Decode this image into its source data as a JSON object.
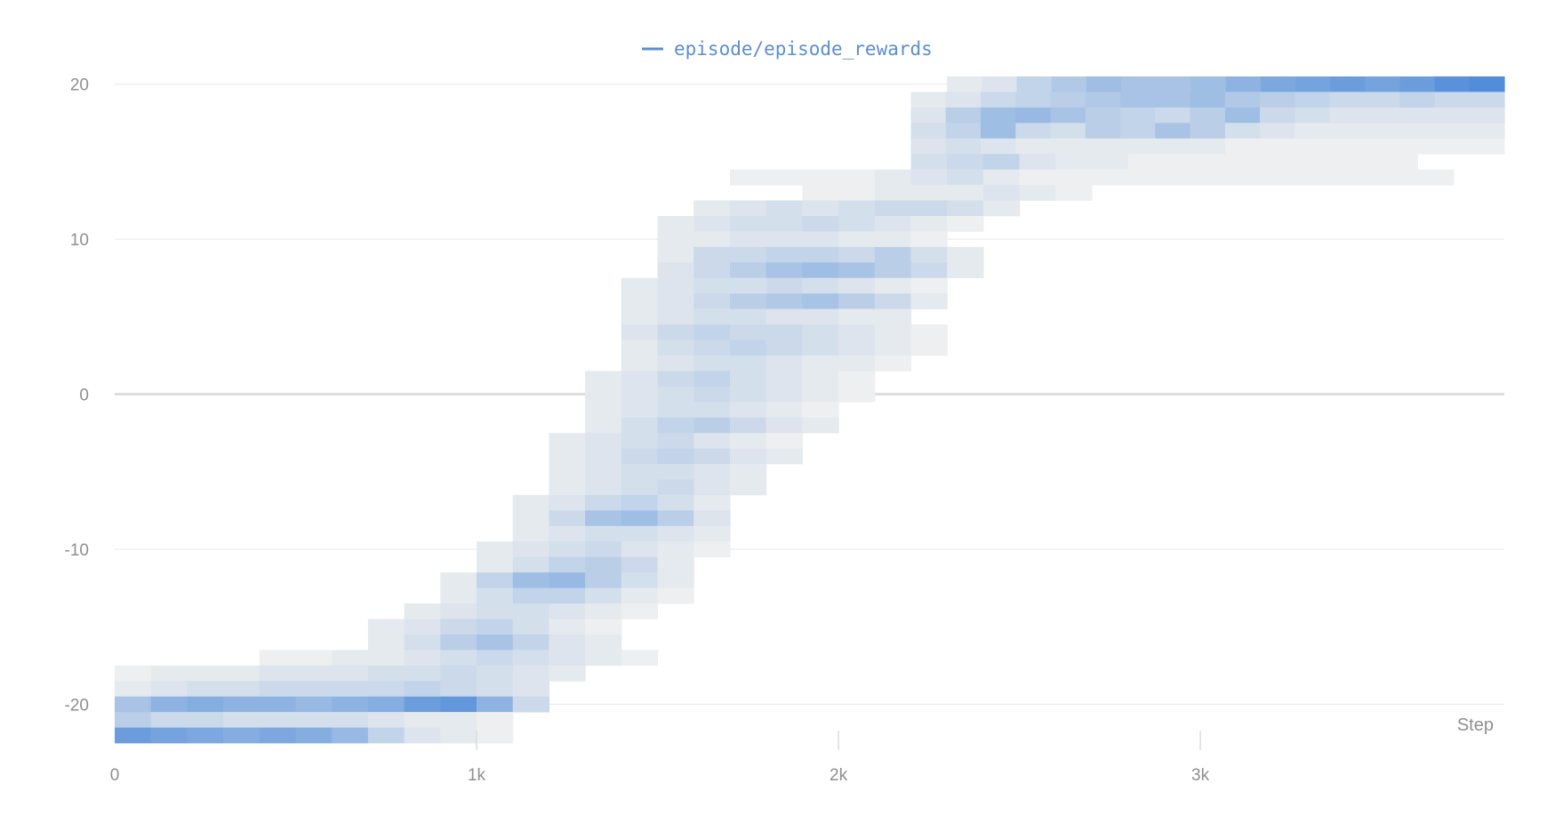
{
  "chart_data": {
    "type": "heatmap",
    "title": "",
    "legend": {
      "label": "episode/episode_rewards",
      "position": "top-center",
      "color": "#4a86d4"
    },
    "xlabel": "Step",
    "ylabel": "",
    "xlim": [
      0,
      3840
    ],
    "ylim": [
      -22.5,
      20.5
    ],
    "x_ticks": [
      {
        "value": 0,
        "label": "0"
      },
      {
        "value": 1000,
        "label": "1k"
      },
      {
        "value": 2000,
        "label": "2k"
      },
      {
        "value": 3000,
        "label": "3k"
      }
    ],
    "y_ticks": [
      {
        "value": 20,
        "label": "20"
      },
      {
        "value": 10,
        "label": "10"
      },
      {
        "value": 0,
        "label": "0"
      },
      {
        "value": -10,
        "label": "-10"
      },
      {
        "value": -20,
        "label": "-20"
      }
    ],
    "grid": true,
    "colors": {
      "low": "#eeeff0",
      "high": "#3f82d6",
      "grid": "#ececec",
      "zero_line": "#dedede"
    },
    "bin_step": 100,
    "rows": [
      {
        "reward": 20,
        "x_start": 2300,
        "x_end": 3840,
        "intensity": [
          0.05,
          0.1,
          0.25,
          0.35,
          0.45,
          0.4,
          0.4,
          0.45,
          0.55,
          0.65,
          0.7,
          0.75,
          0.7,
          0.75,
          0.85,
          0.9
        ]
      },
      {
        "reward": 19,
        "x_start": 2200,
        "x_end": 3840,
        "intensity": [
          0.05,
          0.1,
          0.2,
          0.25,
          0.3,
          0.35,
          0.4,
          0.4,
          0.45,
          0.35,
          0.3,
          0.25,
          0.2,
          0.2,
          0.25,
          0.2,
          0.2
        ]
      },
      {
        "reward": 18,
        "x_start": 2200,
        "x_end": 3840,
        "intensity": [
          0.1,
          0.3,
          0.45,
          0.5,
          0.4,
          0.3,
          0.25,
          0.2,
          0.3,
          0.45,
          0.2,
          0.15,
          0.1,
          0.1,
          0.1,
          0.1,
          0.1
        ]
      },
      {
        "reward": 17,
        "x_start": 2200,
        "x_end": 3840,
        "intensity": [
          0.15,
          0.25,
          0.45,
          0.2,
          0.15,
          0.3,
          0.25,
          0.4,
          0.3,
          0.15,
          0.1,
          0.05,
          0.05,
          0.05,
          0.05,
          0.05,
          0.05
        ]
      },
      {
        "reward": 16,
        "x_start": 2200,
        "x_end": 3840,
        "intensity": [
          0.1,
          0.15,
          0.1,
          0.05,
          0.05,
          0.05,
          0.05,
          0.05,
          0.05,
          0.0,
          0.0,
          0.0,
          0.0,
          0.0,
          0.0,
          0.0,
          0.0
        ]
      },
      {
        "reward": 15,
        "x_start": 2200,
        "x_end": 3600,
        "intensity": [
          0.15,
          0.2,
          0.25,
          0.1,
          0.05,
          0.05,
          0.0,
          0.0,
          0.0,
          0.0,
          0.0,
          0.0,
          0.0,
          0.0
        ]
      },
      {
        "reward": 14,
        "x_start": 1700,
        "x_end": 3700,
        "intensity": [
          0.0,
          0.0,
          0.0,
          0.0,
          0.05,
          0.1,
          0.15,
          0.05,
          0.0,
          0.0,
          0.0,
          0.0,
          0.0,
          0.0,
          0.0,
          0.0,
          0.0,
          0.0,
          0.0,
          0.0
        ]
      },
      {
        "reward": 13,
        "x_start": 1900,
        "x_end": 2700,
        "intensity": [
          0.0,
          0.0,
          0.05,
          0.05,
          0.05,
          0.1,
          0.05,
          0.0
        ]
      },
      {
        "reward": 12,
        "x_start": 1600,
        "x_end": 2500,
        "intensity": [
          0.05,
          0.1,
          0.15,
          0.1,
          0.15,
          0.2,
          0.2,
          0.15,
          0.05
        ]
      },
      {
        "reward": 11,
        "x_start": 1500,
        "x_end": 2400,
        "intensity": [
          0.05,
          0.1,
          0.15,
          0.15,
          0.2,
          0.15,
          0.1,
          0.05,
          0.0
        ]
      },
      {
        "reward": 10,
        "x_start": 1500,
        "x_end": 2300,
        "intensity": [
          0.05,
          0.05,
          0.1,
          0.1,
          0.1,
          0.05,
          0.05,
          0.0
        ]
      },
      {
        "reward": 9,
        "x_start": 1500,
        "x_end": 2400,
        "intensity": [
          0.05,
          0.2,
          0.2,
          0.25,
          0.25,
          0.2,
          0.3,
          0.15,
          0.05
        ]
      },
      {
        "reward": 8,
        "x_start": 1500,
        "x_end": 2400,
        "intensity": [
          0.1,
          0.2,
          0.3,
          0.4,
          0.45,
          0.4,
          0.3,
          0.2,
          0.05
        ]
      },
      {
        "reward": 7,
        "x_start": 1400,
        "x_end": 2300,
        "intensity": [
          0.05,
          0.1,
          0.15,
          0.15,
          0.2,
          0.15,
          0.1,
          0.05,
          0.0
        ]
      },
      {
        "reward": 6,
        "x_start": 1400,
        "x_end": 2300,
        "intensity": [
          0.05,
          0.1,
          0.2,
          0.3,
          0.35,
          0.4,
          0.3,
          0.2,
          0.05
        ]
      },
      {
        "reward": 5,
        "x_start": 1400,
        "x_end": 2200,
        "intensity": [
          0.05,
          0.1,
          0.15,
          0.15,
          0.1,
          0.1,
          0.05,
          0.05
        ]
      },
      {
        "reward": 4,
        "x_start": 1400,
        "x_end": 2300,
        "intensity": [
          0.1,
          0.2,
          0.25,
          0.2,
          0.2,
          0.15,
          0.1,
          0.05,
          0.0
        ]
      },
      {
        "reward": 3,
        "x_start": 1400,
        "x_end": 2300,
        "intensity": [
          0.05,
          0.15,
          0.2,
          0.25,
          0.2,
          0.15,
          0.1,
          0.05,
          0.0
        ]
      },
      {
        "reward": 2,
        "x_start": 1400,
        "x_end": 2200,
        "intensity": [
          0.05,
          0.1,
          0.15,
          0.15,
          0.1,
          0.05,
          0.05,
          0.0
        ]
      },
      {
        "reward": 1,
        "x_start": 1300,
        "x_end": 2100,
        "intensity": [
          0.05,
          0.1,
          0.2,
          0.25,
          0.15,
          0.1,
          0.05,
          0.0
        ]
      },
      {
        "reward": 0,
        "x_start": 1300,
        "x_end": 2100,
        "intensity": [
          0.05,
          0.1,
          0.15,
          0.2,
          0.15,
          0.1,
          0.05,
          0.0
        ]
      },
      {
        "reward": -1,
        "x_start": 1300,
        "x_end": 2000,
        "intensity": [
          0.05,
          0.1,
          0.15,
          0.15,
          0.1,
          0.05,
          0.0
        ]
      },
      {
        "reward": -2,
        "x_start": 1300,
        "x_end": 2000,
        "intensity": [
          0.05,
          0.15,
          0.25,
          0.3,
          0.2,
          0.1,
          0.05
        ]
      },
      {
        "reward": -3,
        "x_start": 1200,
        "x_end": 1900,
        "intensity": [
          0.05,
          0.1,
          0.15,
          0.2,
          0.1,
          0.05,
          0.0
        ]
      },
      {
        "reward": -4,
        "x_start": 1200,
        "x_end": 1900,
        "intensity": [
          0.05,
          0.1,
          0.2,
          0.25,
          0.2,
          0.1,
          0.05
        ]
      },
      {
        "reward": -5,
        "x_start": 1200,
        "x_end": 1800,
        "intensity": [
          0.05,
          0.1,
          0.15,
          0.15,
          0.1,
          0.05
        ]
      },
      {
        "reward": -6,
        "x_start": 1200,
        "x_end": 1800,
        "intensity": [
          0.05,
          0.1,
          0.15,
          0.2,
          0.1,
          0.05
        ]
      },
      {
        "reward": -7,
        "x_start": 1100,
        "x_end": 1700,
        "intensity": [
          0.05,
          0.1,
          0.2,
          0.25,
          0.15,
          0.05
        ]
      },
      {
        "reward": -8,
        "x_start": 1100,
        "x_end": 1700,
        "intensity": [
          0.05,
          0.2,
          0.4,
          0.45,
          0.3,
          0.1
        ]
      },
      {
        "reward": -9,
        "x_start": 1100,
        "x_end": 1700,
        "intensity": [
          0.05,
          0.1,
          0.15,
          0.15,
          0.1,
          0.05
        ]
      },
      {
        "reward": -10,
        "x_start": 1000,
        "x_end": 1700,
        "intensity": [
          0.05,
          0.1,
          0.15,
          0.2,
          0.1,
          0.05,
          0.0
        ]
      },
      {
        "reward": -11,
        "x_start": 1000,
        "x_end": 1600,
        "intensity": [
          0.05,
          0.15,
          0.25,
          0.3,
          0.2,
          0.05
        ]
      },
      {
        "reward": -12,
        "x_start": 900,
        "x_end": 1600,
        "intensity": [
          0.05,
          0.25,
          0.45,
          0.5,
          0.3,
          0.15,
          0.05
        ]
      },
      {
        "reward": -13,
        "x_start": 900,
        "x_end": 1600,
        "intensity": [
          0.05,
          0.15,
          0.25,
          0.25,
          0.15,
          0.05,
          0.0
        ]
      },
      {
        "reward": -14,
        "x_start": 800,
        "x_end": 1500,
        "intensity": [
          0.05,
          0.1,
          0.15,
          0.15,
          0.1,
          0.05,
          0.0
        ]
      },
      {
        "reward": -15,
        "x_start": 700,
        "x_end": 1400,
        "intensity": [
          0.05,
          0.1,
          0.2,
          0.25,
          0.15,
          0.05,
          0.0
        ]
      },
      {
        "reward": -16,
        "x_start": 700,
        "x_end": 1400,
        "intensity": [
          0.05,
          0.15,
          0.3,
          0.4,
          0.25,
          0.1,
          0.05
        ]
      },
      {
        "reward": -17,
        "x_start": 400,
        "x_end": 1500,
        "intensity": [
          0.0,
          0.0,
          0.05,
          0.05,
          0.1,
          0.15,
          0.2,
          0.15,
          0.1,
          0.05,
          0.0
        ]
      },
      {
        "reward": -18,
        "x_start": 0,
        "x_end": 1300,
        "intensity": [
          0.0,
          0.05,
          0.05,
          0.05,
          0.1,
          0.1,
          0.1,
          0.15,
          0.15,
          0.2,
          0.15,
          0.1,
          0.05
        ]
      },
      {
        "reward": -19,
        "x_start": 0,
        "x_end": 1200,
        "intensity": [
          0.05,
          0.1,
          0.15,
          0.15,
          0.2,
          0.2,
          0.2,
          0.2,
          0.25,
          0.2,
          0.15,
          0.1
        ]
      },
      {
        "reward": -20,
        "x_start": 0,
        "x_end": 1200,
        "intensity": [
          0.4,
          0.55,
          0.6,
          0.55,
          0.55,
          0.5,
          0.55,
          0.6,
          0.75,
          0.8,
          0.55,
          0.2
        ]
      },
      {
        "reward": -21,
        "x_start": 0,
        "x_end": 1100,
        "intensity": [
          0.3,
          0.2,
          0.2,
          0.15,
          0.15,
          0.15,
          0.15,
          0.1,
          0.05,
          0.05,
          0.0
        ]
      },
      {
        "reward": -22,
        "x_start": 0,
        "x_end": 1100,
        "intensity": [
          0.75,
          0.7,
          0.65,
          0.6,
          0.65,
          0.6,
          0.5,
          0.25,
          0.1,
          0.05,
          0.0
        ]
      }
    ]
  }
}
